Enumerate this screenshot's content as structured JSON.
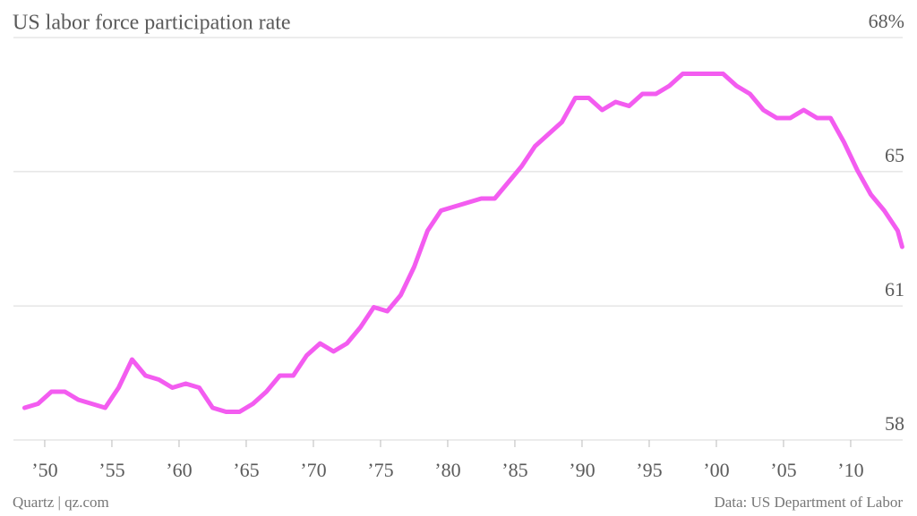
{
  "chart_data": {
    "type": "line",
    "title": "US labor force participation rate",
    "source": "Data: US Department of Labor",
    "credit": "Quartz | qz.com",
    "xlim": [
      1947.67,
      2013.87
    ],
    "ylim": [
      58,
      68
    ],
    "yticks": [
      58,
      {
        "value": 61.33,
        "label": "61"
      },
      {
        "value": 64.67,
        "label": "65"
      },
      {
        "value": 68,
        "label": "68%"
      }
    ],
    "xticks": [
      {
        "value": 1950,
        "label": "’50"
      },
      {
        "value": 1955,
        "label": "’55"
      },
      {
        "value": 1960,
        "label": "’60"
      },
      {
        "value": 1965,
        "label": "’65"
      },
      {
        "value": 1970,
        "label": "’70"
      },
      {
        "value": 1975,
        "label": "’75"
      },
      {
        "value": 1980,
        "label": "’80"
      },
      {
        "value": 1985,
        "label": "’85"
      },
      {
        "value": 1990,
        "label": "’90"
      },
      {
        "value": 1995,
        "label": "’95"
      },
      {
        "value": 2000,
        "label": "’00"
      },
      {
        "value": 2005,
        "label": "’05"
      },
      {
        "value": 2010,
        "label": "’10"
      }
    ],
    "grid": true,
    "series": [
      {
        "name": "Labor force participation rate",
        "color": "#f35cf0",
        "x": [
          1948.5,
          1949.5,
          1950.5,
          1951.5,
          1952.5,
          1953.5,
          1954.5,
          1955.5,
          1956.5,
          1957.5,
          1958.5,
          1959.5,
          1960.5,
          1961.5,
          1962.5,
          1963.5,
          1964.5,
          1965.5,
          1966.5,
          1967.5,
          1968.5,
          1969.5,
          1970.5,
          1971.5,
          1972.5,
          1973.5,
          1974.5,
          1975.5,
          1976.5,
          1977.5,
          1978.5,
          1979.5,
          1980.5,
          1981.5,
          1982.5,
          1983.5,
          1984.5,
          1985.5,
          1986.5,
          1987.5,
          1988.5,
          1989.5,
          1990.5,
          1991.5,
          1992.5,
          1993.5,
          1994.5,
          1995.5,
          1996.5,
          1997.5,
          1998.5,
          1999.5,
          2000.5,
          2001.5,
          2002.5,
          2003.5,
          2004.5,
          2005.5,
          2006.5,
          2007.5,
          2008.5,
          2009.5,
          2010.5,
          2011.5,
          2012.5,
          2013.5,
          2013.83
        ],
        "values": [
          58.8,
          58.9,
          59.2,
          59.2,
          59.0,
          58.9,
          58.8,
          59.3,
          60.0,
          59.6,
          59.5,
          59.3,
          59.4,
          59.3,
          58.8,
          58.7,
          58.7,
          58.9,
          59.2,
          59.6,
          59.6,
          60.1,
          60.4,
          60.2,
          60.4,
          60.8,
          61.3,
          61.2,
          61.6,
          62.3,
          63.2,
          63.7,
          63.8,
          63.9,
          64.0,
          64.0,
          64.4,
          64.8,
          65.3,
          65.6,
          65.9,
          66.5,
          66.5,
          66.2,
          66.4,
          66.3,
          66.6,
          66.6,
          66.8,
          67.1,
          67.1,
          67.1,
          67.1,
          66.8,
          66.6,
          66.2,
          66.0,
          66.0,
          66.2,
          66.0,
          66.0,
          65.4,
          64.7,
          64.1,
          63.7,
          63.2,
          62.8
        ]
      }
    ]
  }
}
